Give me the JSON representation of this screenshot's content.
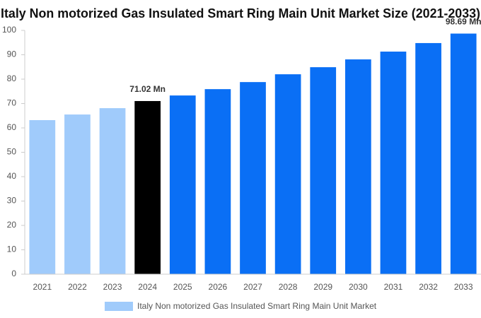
{
  "chart_data": {
    "type": "bar",
    "title": "Italy Non motorized Gas Insulated Smart Ring Main Unit Market Size (2021-2033)",
    "categories": [
      "2021",
      "2022",
      "2023",
      "2024",
      "2025",
      "2026",
      "2027",
      "2028",
      "2029",
      "2030",
      "2031",
      "2032",
      "2033"
    ],
    "series": [
      {
        "name": "Italy Non motorized Gas Insulated Smart Ring Main Unit Market",
        "color": "#a0cbfb",
        "values": [
          63.2,
          65.5,
          68.1,
          71.02,
          73.3,
          75.9,
          78.8,
          82.0,
          84.9,
          88.1,
          91.3,
          94.8,
          98.69
        ],
        "value_labels": [
          null,
          null,
          null,
          "71.02 Mn",
          null,
          null,
          null,
          null,
          null,
          null,
          null,
          null,
          "98.69 Mn"
        ],
        "colors": [
          "#a0cbfb",
          "#a0cbfb",
          "#a0cbfb",
          "#000000",
          "#0a6ff5",
          "#0a6ff5",
          "#0a6ff5",
          "#0a6ff5",
          "#0a6ff5",
          "#0a6ff5",
          "#0a6ff5",
          "#0a6ff5",
          "#0a6ff5"
        ]
      }
    ],
    "ylim": [
      0,
      100
    ],
    "yticks": [
      0,
      10,
      20,
      30,
      40,
      50,
      60,
      70,
      80,
      90,
      100
    ],
    "grid": false
  }
}
